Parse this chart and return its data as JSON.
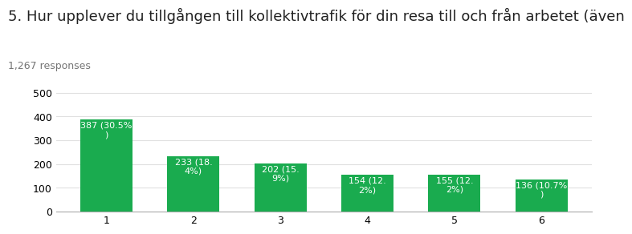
{
  "title": "5. Hur upplever du tillgången till kollektivtrafik för din resa till och från arbetet (även",
  "subtitle": "1,267 responses",
  "categories": [
    1,
    2,
    3,
    4,
    5,
    6
  ],
  "values": [
    387,
    233,
    202,
    154,
    155,
    136
  ],
  "bar_color": "#1aab4f",
  "bar_labels": [
    "387 (30.5%\n)",
    "233 (18.\n4%)",
    "202 (15.\n9%)",
    "154 (12.\n2%)",
    "155 (12.\n2%)",
    "136 (10.7%\n)"
  ],
  "ylim": [
    0,
    550
  ],
  "yticks": [
    0,
    100,
    200,
    300,
    400,
    500
  ],
  "title_fontsize": 13,
  "subtitle_fontsize": 9,
  "label_fontsize": 8,
  "tick_fontsize": 9,
  "background_color": "#ffffff",
  "plot_background": "#ffffff",
  "grid_color": "#e0e0e0"
}
